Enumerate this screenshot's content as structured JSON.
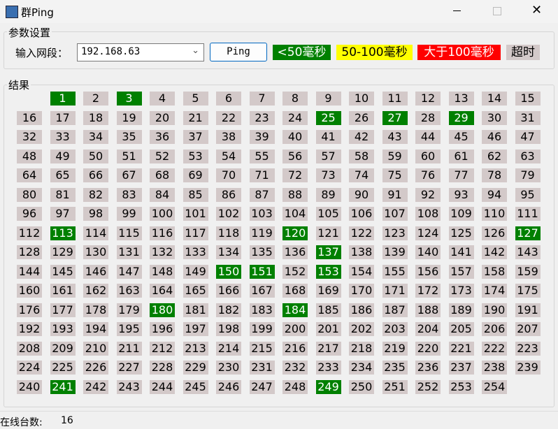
{
  "window": {
    "title": "群Ping"
  },
  "params": {
    "group_title": "参数设置",
    "label": "输入网段：",
    "subnet": "192.168.63",
    "button": "Ping",
    "legend": [
      {
        "text": "<50毫秒",
        "color": "#008000",
        "text_color": "#ffffff"
      },
      {
        "text": "50-100毫秒",
        "color": "#ffff00",
        "text_color": "#000000"
      },
      {
        "text": "大于100毫秒",
        "color": "#ff0000",
        "text_color": "#ffffff"
      },
      {
        "text": "超时",
        "color": "#d3c9c9",
        "text_color": "#000000"
      }
    ]
  },
  "results": {
    "group_title": "结果",
    "columns": 16,
    "numbers": [
      1,
      2,
      3,
      4,
      5,
      6,
      7,
      8,
      9,
      10,
      11,
      12,
      13,
      14,
      15,
      16,
      17,
      18,
      19,
      20,
      21,
      22,
      23,
      24,
      25,
      26,
      27,
      28,
      29,
      30,
      31,
      32,
      33,
      34,
      35,
      36,
      37,
      38,
      39,
      40,
      41,
      42,
      43,
      44,
      45,
      46,
      47,
      48,
      49,
      50,
      51,
      52,
      53,
      54,
      55,
      56,
      57,
      58,
      59,
      60,
      61,
      62,
      63,
      64,
      65,
      66,
      67,
      68,
      69,
      70,
      71,
      72,
      73,
      74,
      75,
      76,
      77,
      78,
      79,
      80,
      81,
      82,
      83,
      84,
      85,
      86,
      87,
      88,
      89,
      90,
      91,
      92,
      93,
      94,
      95,
      96,
      97,
      98,
      99,
      100,
      101,
      102,
      103,
      104,
      105,
      106,
      107,
      108,
      109,
      110,
      111,
      112,
      113,
      114,
      115,
      116,
      117,
      118,
      119,
      120,
      121,
      122,
      123,
      124,
      125,
      126,
      127,
      128,
      129,
      130,
      131,
      132,
      133,
      134,
      135,
      136,
      137,
      138,
      139,
      140,
      141,
      142,
      143,
      144,
      145,
      146,
      147,
      148,
      149,
      150,
      151,
      152,
      153,
      154,
      155,
      156,
      157,
      158,
      159,
      160,
      161,
      162,
      163,
      164,
      165,
      166,
      167,
      168,
      169,
      170,
      171,
      172,
      173,
      174,
      175,
      176,
      177,
      178,
      179,
      180,
      181,
      182,
      183,
      184,
      185,
      186,
      187,
      188,
      189,
      190,
      191,
      192,
      193,
      194,
      195,
      196,
      197,
      198,
      199,
      200,
      201,
      202,
      203,
      204,
      205,
      206,
      207,
      208,
      209,
      210,
      211,
      212,
      213,
      214,
      215,
      216,
      217,
      218,
      219,
      220,
      221,
      222,
      223,
      224,
      225,
      226,
      227,
      228,
      229,
      230,
      231,
      232,
      233,
      234,
      235,
      236,
      237,
      238,
      239,
      240,
      241,
      242,
      243,
      244,
      245,
      246,
      247,
      248,
      249,
      250,
      251,
      252,
      253,
      254
    ],
    "online": [
      true,
      false,
      true,
      false,
      false,
      false,
      false,
      false,
      false,
      false,
      false,
      false,
      false,
      false,
      false,
      false,
      false,
      false,
      false,
      false,
      false,
      false,
      false,
      false,
      true,
      false,
      true,
      false,
      true,
      false,
      false,
      false,
      false,
      false,
      false,
      false,
      false,
      false,
      false,
      false,
      false,
      false,
      false,
      false,
      false,
      false,
      false,
      false,
      false,
      false,
      false,
      false,
      false,
      false,
      false,
      false,
      false,
      false,
      false,
      false,
      false,
      false,
      false,
      false,
      false,
      false,
      false,
      false,
      false,
      false,
      false,
      false,
      false,
      false,
      false,
      false,
      false,
      false,
      false,
      false,
      false,
      false,
      false,
      false,
      false,
      false,
      false,
      false,
      false,
      false,
      false,
      false,
      false,
      false,
      false,
      false,
      false,
      false,
      false,
      false,
      false,
      false,
      false,
      false,
      false,
      false,
      false,
      false,
      false,
      false,
      false,
      false,
      true,
      false,
      false,
      false,
      false,
      false,
      false,
      true,
      false,
      false,
      false,
      false,
      false,
      false,
      true,
      false,
      false,
      false,
      false,
      false,
      false,
      false,
      false,
      false,
      true,
      false,
      false,
      false,
      false,
      false,
      false,
      false,
      false,
      false,
      false,
      false,
      false,
      true,
      true,
      false,
      true,
      false,
      false,
      false,
      false,
      false,
      false,
      false,
      false,
      false,
      false,
      false,
      false,
      false,
      false,
      false,
      false,
      false,
      false,
      false,
      false,
      false,
      false,
      false,
      false,
      false,
      false,
      true,
      false,
      false,
      false,
      true,
      false,
      false,
      false,
      false,
      false,
      false,
      false,
      false,
      false,
      false,
      false,
      false,
      false,
      false,
      false,
      false,
      false,
      false,
      false,
      false,
      false,
      false,
      false,
      false,
      false,
      false,
      false,
      false,
      false,
      false,
      false,
      false,
      false,
      false,
      false,
      false,
      false,
      false,
      false,
      false,
      false,
      false,
      false,
      false,
      false,
      false,
      false,
      false,
      false,
      false,
      false,
      false,
      false,
      false,
      false,
      false,
      true,
      false,
      false,
      false,
      false,
      false,
      false,
      false,
      true,
      false,
      false,
      false,
      false,
      false
    ]
  },
  "status": {
    "label": "在线台数:",
    "count": "16"
  }
}
